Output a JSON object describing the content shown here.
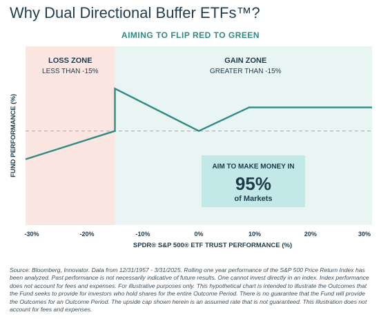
{
  "title": "Why Dual Directional Buffer ETFs™?",
  "subtitle": "AIMING TO FLIP RED TO GREEN",
  "colors": {
    "loss_zone": "#fbe6e1",
    "gain_zone": "#e8f5f3",
    "line": "#2f8a84",
    "dashed": "#b9b9b9",
    "callout_bg": "#c3e8e8",
    "text": "#1d3a4a"
  },
  "zones": {
    "loss": {
      "title": "LOSS ZONE",
      "subtitle": "LESS THAN -15%"
    },
    "gain": {
      "title": "GAIN ZONE",
      "subtitle": "GREATER THAN -15%"
    }
  },
  "callout": {
    "line1": "AIM TO MAKE MONEY IN",
    "big": "95%",
    "line3": "of Markets"
  },
  "chart_data": {
    "type": "line",
    "xlabel": "SPDR® S&P 500® ETF TRUST PERFORMANCE (%)",
    "ylabel": "FUND PERFORMANCE (%)",
    "x_ticks": [
      "-30%",
      "-20%",
      "-10%",
      "0%",
      "10%",
      "20%",
      "30%"
    ],
    "x_tick_values": [
      -30,
      -20,
      -10,
      0,
      10,
      20,
      30
    ],
    "xlim": [
      -31,
      31
    ],
    "ylim": [
      -20,
      18
    ],
    "y_tick_labels_shown": false,
    "zone_boundary_x": -15,
    "baseline_y": 0,
    "series": [
      {
        "x": [
          -31,
          -15,
          -15,
          0,
          9,
          31
        ],
        "y": [
          -6,
          0,
          9,
          0,
          5,
          5
        ]
      }
    ]
  },
  "footnote": "Source: Bloomberg, Innovator. Data from 12/31/1957 - 3/31/2025. Rolling one year performance of the S&P 500 Price Return Index has been analyzed. Past performance is not necessarily indicative of future results. One cannot invest directly in an index. Index performance does not account for fees and expenses. For illustrative purposes only. This hypothetical chart is intended to illustrate the Outcomes that the Fund seeks to provide for investors who hold shares for the entire Outcome Period. There is no guarantee that the Fund will provide the Outcomes for an Outcome Period. The upside cap shown herein is an assumed rate that is not guaranteed. This illustration does not account for fees and expenses."
}
